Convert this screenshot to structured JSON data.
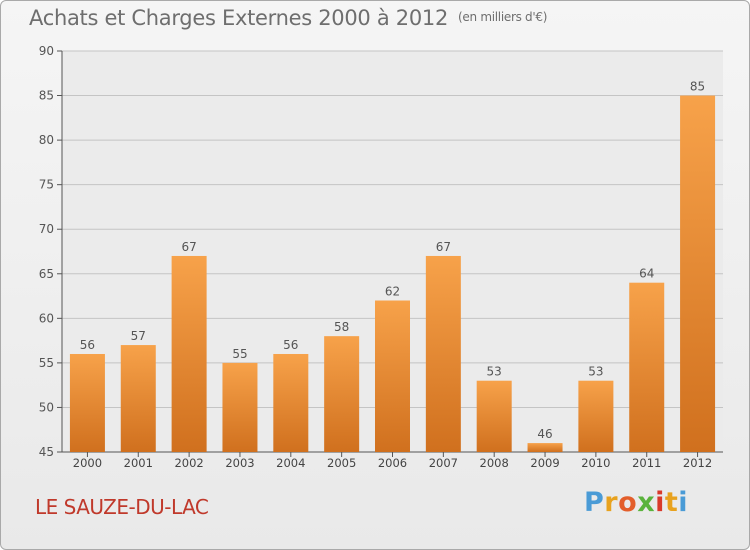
{
  "header": {
    "title": "Achats et Charges Externes 2000 à 2012",
    "unit": "(en milliers d'€)"
  },
  "footer": {
    "commune": "LE SAUZE-DU-LAC",
    "logo": "Proxiti"
  },
  "colors": {
    "bar_light": "#f7a24a",
    "bar_dark": "#d0701e",
    "commune_text": "#c0392b",
    "logo_letters": [
      "#4a9bd6",
      "#e8a21e",
      "#e35e2b",
      "#5ab33c",
      "#d93a2b",
      "#e8a21e",
      "#4a9bd6"
    ]
  },
  "chart_data": {
    "type": "bar",
    "title": "Achats et Charges Externes 2000 à 2012",
    "categories": [
      "2000",
      "2001",
      "2002",
      "2003",
      "2004",
      "2005",
      "2006",
      "2007",
      "2008",
      "2009",
      "2010",
      "2011",
      "2012"
    ],
    "values": [
      56,
      57,
      67,
      55,
      56,
      58,
      62,
      67,
      53,
      46,
      53,
      64,
      85
    ],
    "ylim": [
      45,
      90
    ],
    "yticks": [
      45,
      50,
      55,
      60,
      65,
      70,
      75,
      80,
      85,
      90
    ],
    "grid": true,
    "data_labels": true
  }
}
